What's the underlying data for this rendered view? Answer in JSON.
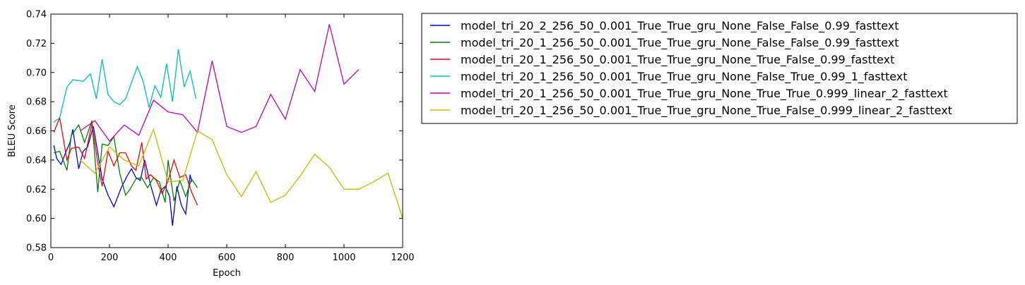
{
  "chart_data": {
    "type": "line",
    "title": "",
    "xlabel": "Epoch",
    "ylabel": "BLEU Score",
    "xlim": [
      0,
      1200
    ],
    "ylim": [
      0.58,
      0.74
    ],
    "x_ticks": [
      "0",
      "200",
      "400",
      "600",
      "800",
      "1000",
      "1200"
    ],
    "y_ticks": [
      "0.58",
      "0.60",
      "0.62",
      "0.64",
      "0.66",
      "0.68",
      "0.70",
      "0.72",
      "0.74"
    ],
    "grid": false,
    "legend_placement": "outside-right",
    "series": [
      {
        "name": "model_tri_20_2_256_50_0.001_True_True_gru_None_False_False_0.99_fasttext",
        "color": "#0000ff",
        "points": [
          [
            10,
            0.65
          ],
          [
            20,
            0.641
          ],
          [
            35,
            0.637
          ],
          [
            50,
            0.645
          ],
          [
            65,
            0.652
          ],
          [
            75,
            0.661
          ],
          [
            95,
            0.634
          ],
          [
            110,
            0.646
          ],
          [
            125,
            0.649
          ],
          [
            145,
            0.663
          ],
          [
            165,
            0.639
          ],
          [
            175,
            0.627
          ],
          [
            195,
            0.616
          ],
          [
            215,
            0.608
          ],
          [
            240,
            0.621
          ],
          [
            260,
            0.629
          ],
          [
            275,
            0.634
          ],
          [
            290,
            0.628
          ],
          [
            305,
            0.626
          ],
          [
            320,
            0.64
          ],
          [
            340,
            0.623
          ],
          [
            360,
            0.609
          ],
          [
            375,
            0.619
          ],
          [
            390,
            0.622
          ],
          [
            405,
            0.615
          ],
          [
            415,
            0.595
          ],
          [
            430,
            0.622
          ],
          [
            445,
            0.609
          ],
          [
            460,
            0.603
          ],
          [
            475,
            0.63
          ],
          [
            480,
            0.625
          ]
        ]
      },
      {
        "name": "model_tri_20_1_256_50_0.001_True_True_gru_None_False_False_0.99_fasttext",
        "color": "#008000",
        "points": [
          [
            10,
            0.645
          ],
          [
            30,
            0.646
          ],
          [
            55,
            0.633
          ],
          [
            70,
            0.657
          ],
          [
            95,
            0.664
          ],
          [
            115,
            0.652
          ],
          [
            140,
            0.667
          ],
          [
            160,
            0.618
          ],
          [
            175,
            0.651
          ],
          [
            195,
            0.65
          ],
          [
            215,
            0.656
          ],
          [
            235,
            0.631
          ],
          [
            255,
            0.616
          ],
          [
            270,
            0.62
          ],
          [
            290,
            0.627
          ],
          [
            310,
            0.628
          ],
          [
            330,
            0.621
          ],
          [
            350,
            0.628
          ],
          [
            370,
            0.625
          ],
          [
            390,
            0.611
          ],
          [
            400,
            0.64
          ],
          [
            420,
            0.612
          ],
          [
            440,
            0.626
          ],
          [
            460,
            0.615
          ],
          [
            480,
            0.627
          ],
          [
            500,
            0.621
          ]
        ]
      },
      {
        "name": "model_tri_20_1_256_50_0.001_True_True_gru_None_True_False_0.99_fasttext",
        "color": "#ff0000",
        "points": [
          [
            10,
            0.659
          ],
          [
            30,
            0.669
          ],
          [
            55,
            0.64
          ],
          [
            70,
            0.648
          ],
          [
            95,
            0.649
          ],
          [
            115,
            0.641
          ],
          [
            140,
            0.665
          ],
          [
            160,
            0.638
          ],
          [
            175,
            0.622
          ],
          [
            195,
            0.646
          ],
          [
            215,
            0.636
          ],
          [
            235,
            0.645
          ],
          [
            255,
            0.645
          ],
          [
            275,
            0.636
          ],
          [
            290,
            0.633
          ],
          [
            310,
            0.652
          ],
          [
            325,
            0.627
          ],
          [
            340,
            0.63
          ],
          [
            360,
            0.626
          ],
          [
            380,
            0.617
          ],
          [
            400,
            0.626
          ],
          [
            420,
            0.64
          ],
          [
            440,
            0.628
          ],
          [
            460,
            0.63
          ],
          [
            480,
            0.618
          ],
          [
            500,
            0.609
          ]
        ]
      },
      {
        "name": "model_tri_20_1_256_50_0.001_True_True_gru_None_False_True_0.99_1_fasttext",
        "color": "#00bfbf",
        "points": [
          [
            10,
            0.666
          ],
          [
            30,
            0.669
          ],
          [
            55,
            0.69
          ],
          [
            75,
            0.695
          ],
          [
            110,
            0.694
          ],
          [
            135,
            0.699
          ],
          [
            155,
            0.682
          ],
          [
            175,
            0.709
          ],
          [
            195,
            0.685
          ],
          [
            215,
            0.68
          ],
          [
            235,
            0.678
          ],
          [
            255,
            0.682
          ],
          [
            275,
            0.693
          ],
          [
            295,
            0.704
          ],
          [
            315,
            0.694
          ],
          [
            335,
            0.676
          ],
          [
            355,
            0.691
          ],
          [
            375,
            0.683
          ],
          [
            395,
            0.706
          ],
          [
            415,
            0.68
          ],
          [
            435,
            0.716
          ],
          [
            455,
            0.69
          ],
          [
            475,
            0.701
          ],
          [
            495,
            0.682
          ]
        ]
      },
      {
        "name": "model_tri_20_1_256_50_0.001_True_True_gru_None_True_True_0.999_linear_2_fasttext",
        "color": "#bf00bf",
        "points": [
          [
            100,
            0.66
          ],
          [
            150,
            0.667
          ],
          [
            200,
            0.653
          ],
          [
            250,
            0.664
          ],
          [
            300,
            0.657
          ],
          [
            350,
            0.681
          ],
          [
            400,
            0.673
          ],
          [
            450,
            0.671
          ],
          [
            500,
            0.659
          ],
          [
            550,
            0.708
          ],
          [
            600,
            0.663
          ],
          [
            650,
            0.659
          ],
          [
            700,
            0.663
          ],
          [
            750,
            0.685
          ],
          [
            800,
            0.668
          ],
          [
            850,
            0.702
          ],
          [
            900,
            0.687
          ],
          [
            950,
            0.733
          ],
          [
            1000,
            0.692
          ],
          [
            1050,
            0.702
          ]
        ]
      },
      {
        "name": "model_tri_20_1_256_50_0.001_True_True_gru_None_True_False_0.999_linear_2_fasttext",
        "color": "#bfbf00",
        "points": [
          [
            100,
            0.64
          ],
          [
            150,
            0.631
          ],
          [
            200,
            0.649
          ],
          [
            250,
            0.64
          ],
          [
            300,
            0.636
          ],
          [
            350,
            0.661
          ],
          [
            400,
            0.625
          ],
          [
            450,
            0.626
          ],
          [
            500,
            0.66
          ],
          [
            550,
            0.654
          ],
          [
            600,
            0.63
          ],
          [
            650,
            0.615
          ],
          [
            700,
            0.632
          ],
          [
            750,
            0.611
          ],
          [
            800,
            0.616
          ],
          [
            850,
            0.629
          ],
          [
            900,
            0.644
          ],
          [
            950,
            0.635
          ],
          [
            1000,
            0.62
          ],
          [
            1050,
            0.62
          ],
          [
            1100,
            0.625
          ],
          [
            1150,
            0.631
          ],
          [
            1200,
            0.6
          ]
        ]
      }
    ]
  }
}
